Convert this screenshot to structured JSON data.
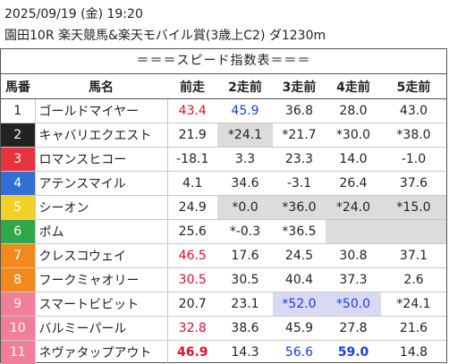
{
  "header": {
    "datetime": "2025/09/19 (金) 19:20",
    "race": "園田10R 楽天競馬&楽天モバイル賞(3歳上C2) ダ1230m"
  },
  "table": {
    "caption": "＝＝＝スピード指数表＝＝＝",
    "columns": [
      "馬番",
      "馬名",
      "前走",
      "2走前",
      "3走前",
      "4走前",
      "5走前"
    ],
    "rows": [
      {
        "no": "1",
        "name": "ゴールドマイヤー",
        "bg": "#ffffff",
        "fg": "#222222",
        "v": [
          "43.4",
          "45.9",
          "36.8",
          "28.0",
          "43.0"
        ],
        "s": [
          "red",
          "blue",
          "",
          "",
          ""
        ]
      },
      {
        "no": "2",
        "name": "キャバリエクエスト",
        "bg": "#222222",
        "fg": "#ffffff",
        "v": [
          "21.9",
          "*24.1",
          "*21.7",
          "*30.0",
          "*38.0"
        ],
        "s": [
          "",
          "gray",
          "",
          "",
          ""
        ]
      },
      {
        "no": "3",
        "name": "ロマンスヒコー",
        "bg": "#e8323c",
        "fg": "#ffffff",
        "v": [
          "-18.1",
          "3.3",
          "23.3",
          "14.0",
          "-1.0"
        ],
        "s": [
          "",
          "",
          "",
          "",
          ""
        ]
      },
      {
        "no": "4",
        "name": "アテンスマイル",
        "bg": "#2f6fd6",
        "fg": "#ffffff",
        "v": [
          "4.1",
          "34.6",
          "-3.1",
          "26.4",
          "37.6"
        ],
        "s": [
          "",
          "",
          "",
          "",
          ""
        ]
      },
      {
        "no": "5",
        "name": "シーオン",
        "bg": "#f2d027",
        "fg": "#ffffff",
        "v": [
          "24.9",
          "*0.0",
          "*36.0",
          "*24.0",
          "*15.0"
        ],
        "s": [
          "",
          "gray",
          "gray",
          "gray",
          "gray"
        ]
      },
      {
        "no": "6",
        "name": "ポム",
        "bg": "#2fa84a",
        "fg": "#ffffff",
        "v": [
          "25.6",
          "*-0.3",
          "*36.5",
          "",
          ""
        ],
        "s": [
          "",
          "",
          "",
          "gray",
          "gray"
        ]
      },
      {
        "no": "7",
        "name": "クレスコウェイ",
        "bg": "#f08a1c",
        "fg": "#ffffff",
        "v": [
          "46.5",
          "17.6",
          "24.5",
          "30.8",
          "37.1"
        ],
        "s": [
          "red",
          "",
          "",
          "",
          ""
        ]
      },
      {
        "no": "8",
        "name": "フークミャオリー",
        "bg": "#f08a1c",
        "fg": "#ffffff",
        "v": [
          "30.5",
          "30.5",
          "40.4",
          "37.3",
          "2.6"
        ],
        "s": [
          "red",
          "",
          "",
          "",
          ""
        ]
      },
      {
        "no": "9",
        "name": "スマートビビット",
        "bg": "#f07f9a",
        "fg": "#ffffff",
        "v": [
          "20.7",
          "23.1",
          "*52.0",
          "*50.0",
          "*24.1"
        ],
        "s": [
          "",
          "",
          "lavblue",
          "lavblue",
          ""
        ]
      },
      {
        "no": "10",
        "name": "バルミーパール",
        "bg": "#f07f9a",
        "fg": "#ffffff",
        "v": [
          "32.8",
          "38.6",
          "45.9",
          "27.8",
          "21.6"
        ],
        "s": [
          "red",
          "",
          "",
          "",
          ""
        ]
      },
      {
        "no": "11",
        "name": "ネヴァタップアウト",
        "bg": "#f07f9a",
        "fg": "#ffffff",
        "v": [
          "46.9",
          "14.3",
          "56.6",
          "59.0",
          "14.8"
        ],
        "s": [
          "redbold",
          "",
          "blue",
          "bluebold",
          ""
        ]
      }
    ]
  }
}
